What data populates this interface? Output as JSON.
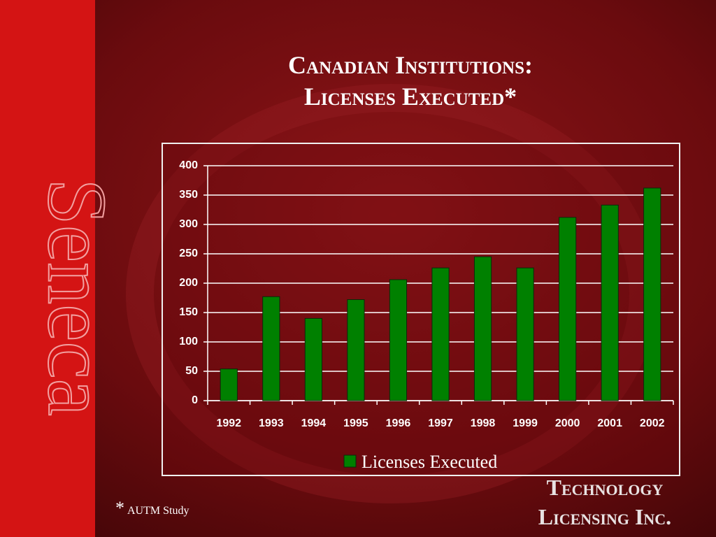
{
  "chart_data": {
    "type": "bar",
    "title": [
      "Canadian Institutions:",
      "Licenses Executed*"
    ],
    "categories": [
      "1992",
      "1993",
      "1994",
      "1995",
      "1996",
      "1997",
      "1998",
      "1999",
      "2000",
      "2001",
      "2002"
    ],
    "series": [
      {
        "name": "Licenses Executed",
        "color": "#008000",
        "values": [
          54,
          177,
          140,
          172,
          206,
          226,
          245,
          226,
          312,
          333,
          362
        ]
      }
    ],
    "ylim": [
      0,
      400
    ],
    "yticks": [
      0,
      50,
      100,
      150,
      200,
      250,
      300,
      350,
      400
    ],
    "grid": true,
    "legend": "bottom"
  },
  "footnote": {
    "mark": "*",
    "text": "AUTM Study"
  },
  "branding": {
    "side": "Seneca",
    "logo": [
      "Technology",
      "Licensing Inc."
    ]
  }
}
